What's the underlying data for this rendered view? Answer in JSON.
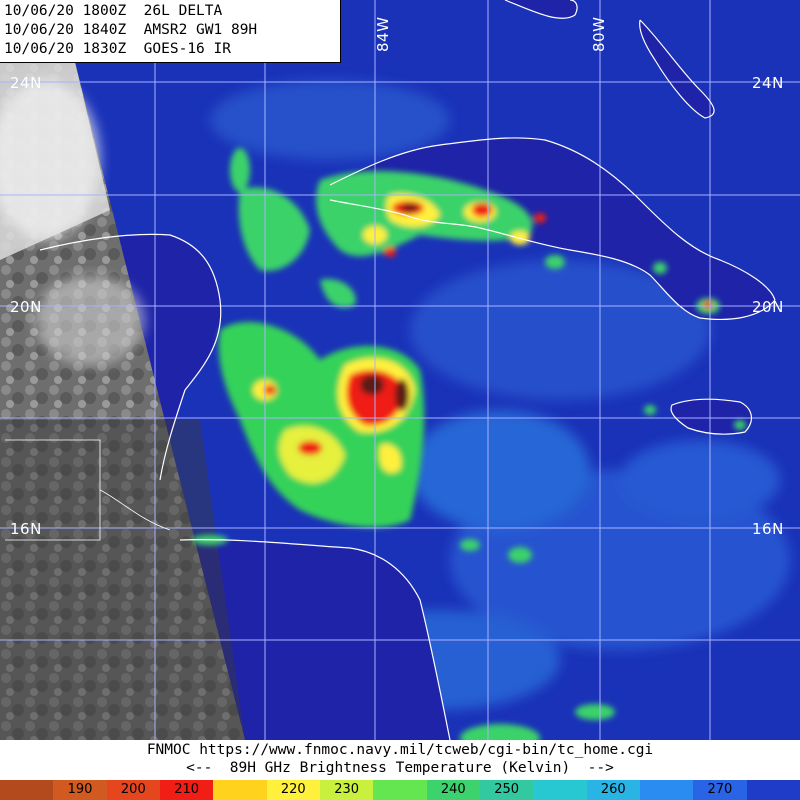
{
  "header": {
    "lines": [
      "10/06/20 1800Z  26L DELTA",
      "10/06/20 1840Z  AMSR2 GW1 89H",
      "10/06/20 1830Z  GOES-16 IR"
    ]
  },
  "map": {
    "lat_labels": [
      "24N",
      "20N",
      "16N"
    ],
    "lon_labels": [
      "84W",
      "80W"
    ],
    "ocean_color": "#1a32b8",
    "land_color": "#1e23a8",
    "coast_color": "#ffffff",
    "grid_color": "#a9b2ff"
  },
  "footer": {
    "url_line": "FNMOC https://www.fnmoc.navy.mil/tcweb/cgi-bin/tc_home.cgi",
    "legend_line": "<--  89H GHz Brightness Temperature (Kelvin)  -->"
  },
  "colorbar": {
    "units": "Kelvin",
    "segments": [
      {
        "label": "",
        "color": "#b34a1e"
      },
      {
        "label": "190",
        "color": "#d05a1f"
      },
      {
        "label": "200",
        "color": "#e6461e"
      },
      {
        "label": "210",
        "color": "#f01e14"
      },
      {
        "label": "",
        "color": "#ffd21e"
      },
      {
        "label": "220",
        "color": "#fff03c"
      },
      {
        "label": "230",
        "color": "#c8f03c"
      },
      {
        "label": "",
        "color": "#64e650"
      },
      {
        "label": "240",
        "color": "#3cd26e"
      },
      {
        "label": "250",
        "color": "#32c8a0"
      },
      {
        "label": "",
        "color": "#28c8d2"
      },
      {
        "label": "260",
        "color": "#2ab4e6"
      },
      {
        "label": "",
        "color": "#2a8cf0"
      },
      {
        "label": "270",
        "color": "#2a64e6"
      },
      {
        "label": "",
        "color": "#1e3cc8"
      }
    ]
  }
}
